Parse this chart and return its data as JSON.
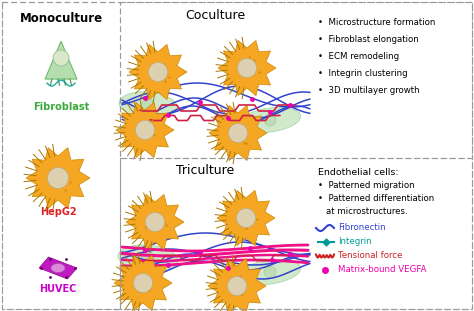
{
  "title_monoculture": "Monoculture",
  "title_coculture": "Coculture",
  "title_triculture": "Triculture",
  "label_fibroblast": "Fibroblast",
  "label_hepg2": "HepG2",
  "label_huvec": "HUVEC",
  "color_fibroblast_text": "#3aaa3a",
  "color_hepg2_text": "#dd2222",
  "color_huvec_text": "#cc00cc",
  "color_fibroblast_fill": "#a8d8a0",
  "color_hepg2_fill": "#F5A623",
  "color_huvec_fill": "#bb00bb",
  "color_blue_line": "#3344cc",
  "color_teal_line": "#009999",
  "color_pink_line": "#ee1188",
  "color_magenta_dot": "#ee00aa",
  "coculture_bullets": [
    "Microstructure formation",
    "Fibroblast elongation",
    "ECM remodeling",
    "Integrin clustering",
    "3D multilayer growth"
  ],
  "triculture_header": "Endothelial cells:",
  "triculture_bullets": [
    "Patterned migration",
    "Patterned differentiation",
    "at microstructures."
  ],
  "legend_fibronectin": "Fibronectin",
  "legend_integrin": "Integrin",
  "legend_tensional": "Tensional force",
  "legend_vegfa": "Matrix-bound VEGFA",
  "legend_fibronectin_color": "#3344cc",
  "legend_integrin_color": "#009999",
  "legend_tensional_color": "#cc2222",
  "legend_vegfa_color": "#ee00aa",
  "border_color": "#999999",
  "panel_bg": "#ffffff"
}
